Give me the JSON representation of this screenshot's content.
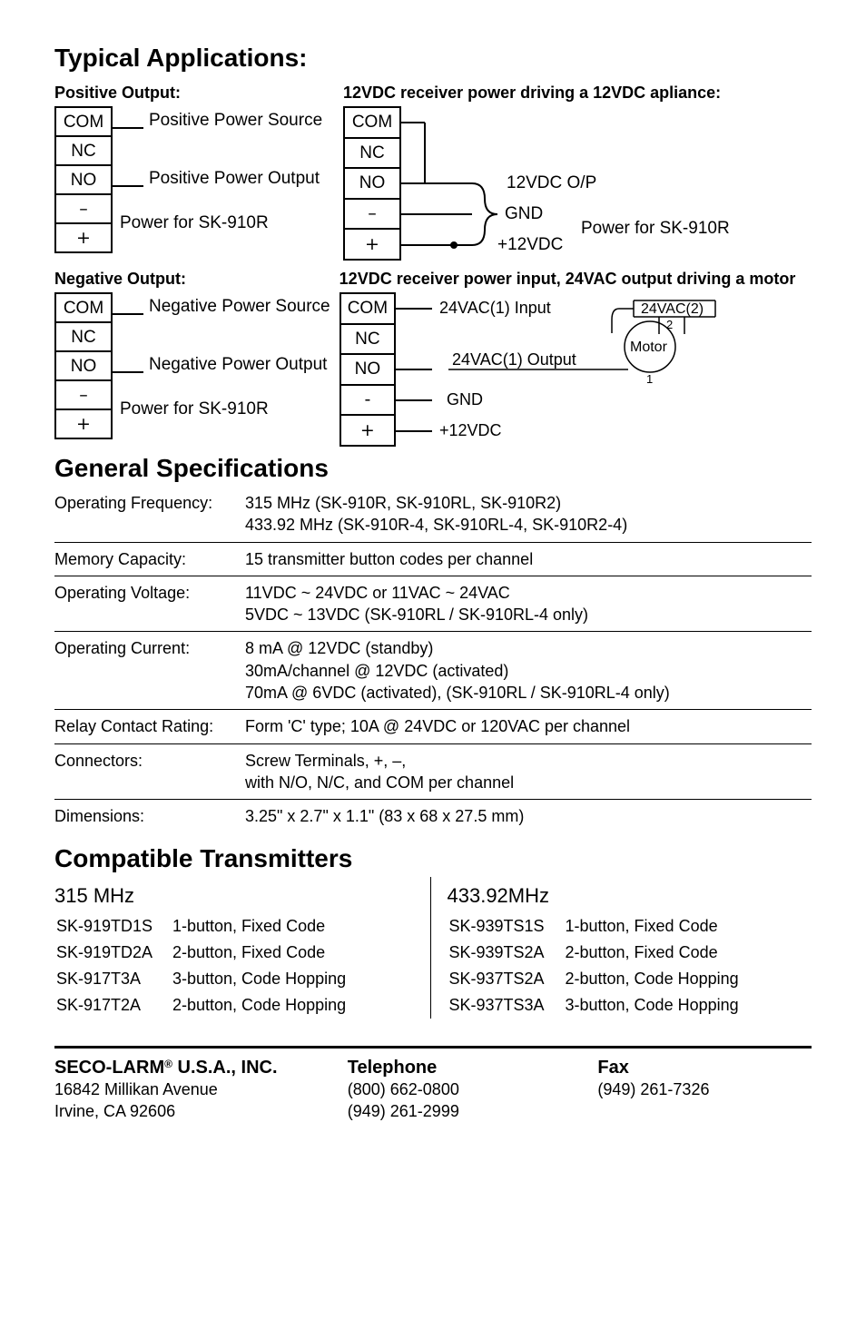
{
  "sections": {
    "typical_apps": "Typical Applications:",
    "gen_specs": "General Specifications",
    "compat_tx": "Compatible Transmitters"
  },
  "diagrams": {
    "pos_out_title": "Positive Output:",
    "neg_out_title": "Negative Output:",
    "r12_title": "12VDC receiver power driving a 12VDC apliance:",
    "r24_title": "12VDC receiver power input, 24VAC output driving a motor",
    "terminals": {
      "com": "COM",
      "nc": "NC",
      "no": "NO",
      "minus": "–",
      "plus": "+",
      "minus2": "-"
    },
    "pos_src": "Positive Power Source",
    "pos_out": "Positive Power Output",
    "neg_src": "Negative Power Source",
    "neg_out": "Negative Power Output",
    "pwr_for": "Power for SK-910R",
    "r12_op": "12VDC O/P",
    "gnd": "GND",
    "p12": "+12VDC",
    "v24in": "24VAC(1) Input",
    "v24out": "24VAC(1) Output",
    "v24_2": "24VAC(2)",
    "motor": "Motor"
  },
  "specs": [
    {
      "k": "Operating Frequency:",
      "v1": "315 MHz (SK-910R, SK-910RL, SK-910R2)",
      "v2": "433.92 MHz (SK-910R-4, SK-910RL-4, SK-910R2-4)"
    },
    {
      "k": "Memory Capacity:",
      "v1": "15 transmitter button codes per channel"
    },
    {
      "k": "Operating Voltage:",
      "v1": "11VDC ~ 24VDC  or  11VAC ~ 24VAC",
      "v2": "5VDC ~ 13VDC (SK-910RL / SK-910RL-4 only)"
    },
    {
      "k": "Operating Current:",
      "v1": "8 mA @ 12VDC (standby)",
      "v2": "30mA/channel @ 12VDC (activated)",
      "v3": "70mA @ 6VDC (activated), (SK-910RL / SK-910RL-4 only)"
    },
    {
      "k": "Relay Contact Rating:",
      "v1": "Form 'C' type; 10A @ 24VDC or 120VAC per channel"
    },
    {
      "k": "Connectors:",
      "v1": "Screw Terminals, +, –,",
      "v2": "with N/O, N/C, and COM per channel"
    },
    {
      "k": "Dimensions:",
      "v1": "3.25\" x 2.7\" x 1.1\"   (83 x 68 x 27.5 mm)"
    }
  ],
  "compat": {
    "left_head": "315 MHz",
    "right_head": "433.92MHz",
    "left": [
      {
        "m": "SK-919TD1S",
        "d": "1-button, Fixed Code"
      },
      {
        "m": "SK-919TD2A",
        "d": "2-button, Fixed Code"
      },
      {
        "m": "SK-917T3A",
        "d": "3-button, Code Hopping"
      },
      {
        "m": "SK-917T2A",
        "d": "2-button, Code Hopping"
      }
    ],
    "right": [
      {
        "m": "SK-939TS1S",
        "d": "1-button, Fixed Code"
      },
      {
        "m": "SK-939TS2A",
        "d": "2-button, Fixed Code"
      },
      {
        "m": "SK-937TS2A",
        "d": "2-button, Code Hopping"
      },
      {
        "m": "SK-937TS3A",
        "d": "3-button, Code Hopping"
      }
    ]
  },
  "footer": {
    "company": "SECO-LARM",
    "suffix": " U.S.A., INC.",
    "addr1": "16842 Millikan Avenue",
    "addr2": "Irvine, CA 92606",
    "tel_lbl": "Telephone",
    "tel1": "(800) 662-0800",
    "tel2": "(949) 261-2999",
    "fax_lbl": "Fax",
    "fax1": "(949) 261-7326"
  },
  "colors": {
    "text": "#000000",
    "rule": "#000000",
    "bg": "#ffffff"
  }
}
